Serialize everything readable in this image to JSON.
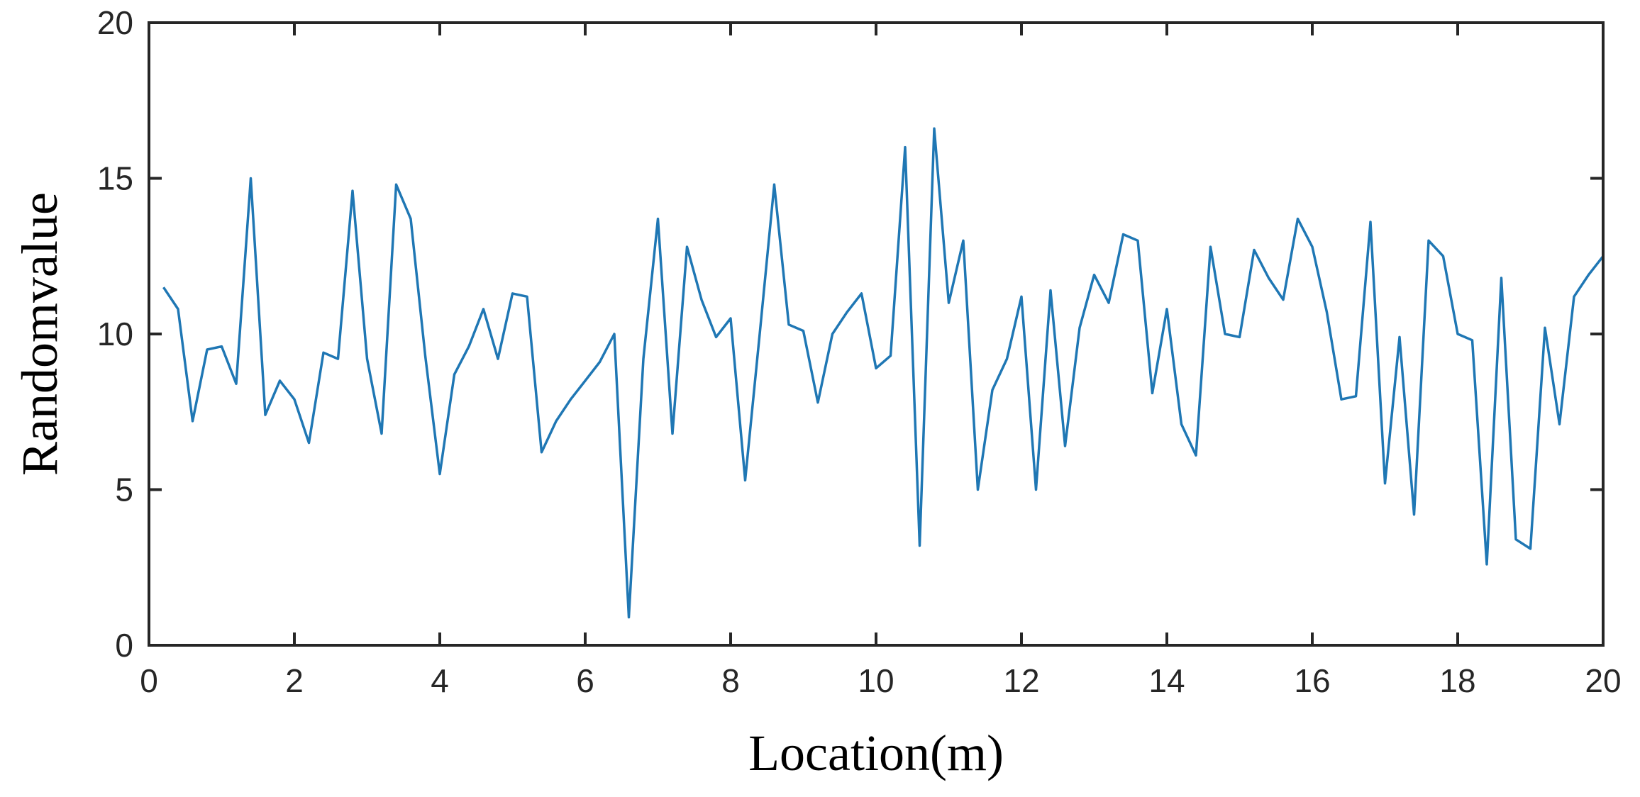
{
  "chart_data": {
    "type": "line",
    "title": "",
    "xlabel": "Location(m)",
    "ylabel": "Randomvalue",
    "xlim": [
      0,
      20
    ],
    "ylim": [
      0,
      20
    ],
    "xticks": [
      0,
      2,
      4,
      6,
      8,
      10,
      12,
      14,
      16,
      18,
      20
    ],
    "yticks": [
      0,
      5,
      10,
      15,
      20
    ],
    "grid": false,
    "legend": "none",
    "line_color": "#1f77b4",
    "series": [
      {
        "x": [
          0.2,
          0.4,
          0.6,
          0.8,
          1.0,
          1.2,
          1.4,
          1.6,
          1.8,
          2.0,
          2.2,
          2.4,
          2.6,
          2.8,
          3.0,
          3.2,
          3.4,
          3.6,
          3.8,
          4.0,
          4.2,
          4.4,
          4.6,
          4.8,
          5.0,
          5.2,
          5.4,
          5.6,
          5.8,
          6.0,
          6.2,
          6.4,
          6.6,
          6.8,
          7.0,
          7.2,
          7.4,
          7.6,
          7.8,
          8.0,
          8.2,
          8.4,
          8.6,
          8.8,
          9.0,
          9.2,
          9.4,
          9.6,
          9.8,
          10.0,
          10.2,
          10.4,
          10.6,
          10.8,
          11.0,
          11.2,
          11.4,
          11.6,
          11.8,
          12.0,
          12.2,
          12.4,
          12.6,
          12.8,
          13.0,
          13.2,
          13.4,
          13.6,
          13.8,
          14.0,
          14.2,
          14.4,
          14.6,
          14.8,
          15.0,
          15.2,
          15.4,
          15.6,
          15.8,
          16.0,
          16.2,
          16.4,
          16.6,
          16.8,
          17.0,
          17.2,
          17.4,
          17.6,
          17.8,
          18.0,
          18.2,
          18.4,
          18.6,
          18.8,
          19.0,
          19.2,
          19.4,
          19.6,
          19.8,
          20.0
        ],
        "y": [
          11.5,
          10.8,
          7.2,
          9.5,
          9.6,
          8.4,
          15.0,
          7.4,
          8.5,
          7.9,
          6.5,
          9.4,
          9.2,
          14.6,
          9.2,
          6.8,
          14.8,
          13.7,
          9.3,
          5.5,
          8.7,
          9.6,
          10.8,
          9.2,
          11.3,
          11.2,
          6.2,
          7.2,
          7.9,
          8.5,
          9.1,
          10.0,
          0.9,
          9.2,
          13.7,
          6.8,
          12.8,
          11.1,
          9.9,
          10.5,
          5.3,
          10.0,
          14.8,
          10.3,
          10.1,
          7.8,
          10.0,
          10.7,
          11.3,
          8.9,
          9.3,
          16.0,
          3.2,
          16.6,
          11.0,
          13.0,
          5.0,
          8.2,
          9.2,
          11.2,
          5.0,
          11.4,
          6.4,
          10.2,
          11.9,
          11.0,
          13.2,
          13.0,
          8.1,
          10.8,
          7.1,
          6.1,
          12.8,
          10.0,
          9.9,
          12.7,
          11.8,
          11.1,
          13.7,
          12.8,
          10.7,
          7.9,
          8.0,
          13.6,
          5.2,
          9.9,
          4.2,
          13.0,
          12.5,
          10.0,
          9.8,
          2.6,
          11.8,
          3.4,
          3.1,
          10.2,
          7.1,
          11.2,
          11.9,
          12.5
        ]
      }
    ]
  }
}
